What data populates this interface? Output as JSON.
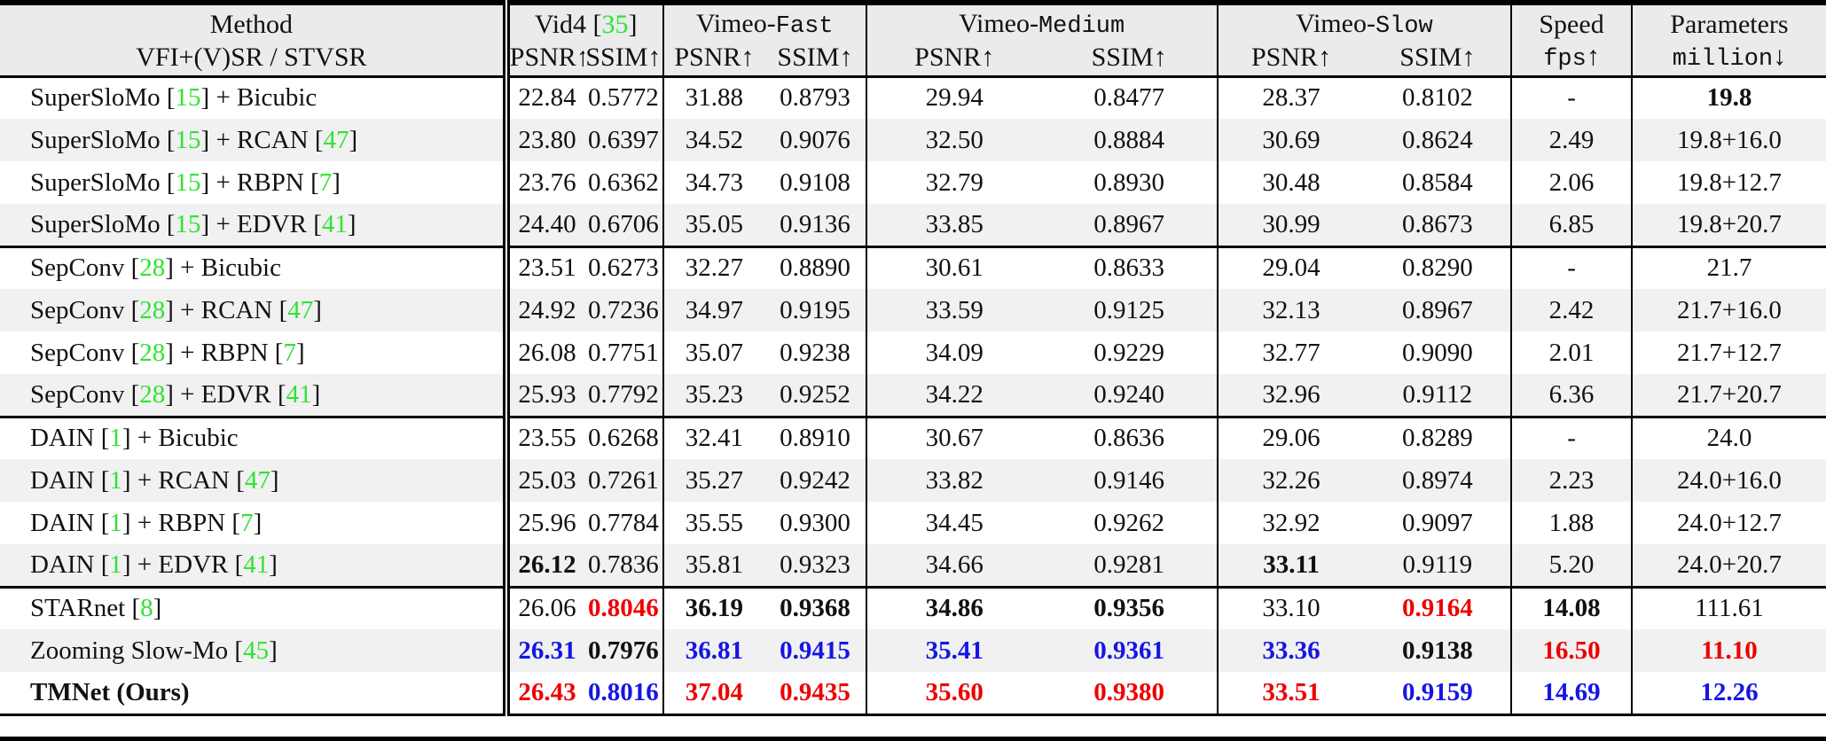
{
  "colors": {
    "red": "#ee0000",
    "blue": "#1515e6",
    "green": "#2ee431",
    "header_bg": "#ebebeb",
    "zebra_bg": "#f1f1f1"
  },
  "header": {
    "method": {
      "line1": "Method",
      "line2": "VFI+(V)SR / STVSR"
    },
    "groups": [
      {
        "span": 2,
        "segs": [
          [
            "Vid4 [",
            ""
          ],
          [
            "35",
            "g"
          ],
          [
            "]",
            ""
          ]
        ]
      },
      {
        "span": 2,
        "segs": [
          [
            "Vimeo-",
            ""
          ],
          [
            "Fast",
            "m"
          ]
        ]
      },
      {
        "span": 2,
        "segs": [
          [
            "Vimeo-",
            ""
          ],
          [
            "Medium",
            "m"
          ]
        ]
      },
      {
        "span": 2,
        "segs": [
          [
            "Vimeo-",
            ""
          ],
          [
            "Slow",
            "m"
          ]
        ]
      },
      {
        "span": 1,
        "segs": [
          [
            "Speed",
            ""
          ]
        ]
      },
      {
        "span": 1,
        "segs": [
          [
            "Parameters",
            ""
          ]
        ]
      }
    ],
    "sub": [
      {
        "segs": [
          [
            "PSNR↑",
            ""
          ]
        ]
      },
      {
        "segs": [
          [
            "SSIM↑",
            ""
          ]
        ]
      },
      {
        "segs": [
          [
            "PSNR↑",
            ""
          ]
        ]
      },
      {
        "segs": [
          [
            "SSIM↑",
            ""
          ]
        ]
      },
      {
        "segs": [
          [
            "PSNR↑",
            ""
          ]
        ]
      },
      {
        "segs": [
          [
            "SSIM↑",
            ""
          ]
        ]
      },
      {
        "segs": [
          [
            "PSNR↑",
            ""
          ]
        ]
      },
      {
        "segs": [
          [
            "SSIM↑",
            ""
          ]
        ]
      },
      {
        "segs": [
          [
            "fps",
            "m"
          ],
          [
            "↑",
            ""
          ]
        ]
      },
      {
        "segs": [
          [
            "million",
            "m"
          ],
          [
            "↓",
            ""
          ]
        ]
      }
    ]
  },
  "chart_data": {
    "type": "table",
    "title": "",
    "columns": [
      "Vid4 PSNR",
      "Vid4 SSIM",
      "Vimeo-Fast PSNR",
      "Vimeo-Fast SSIM",
      "Vimeo-Medium PSNR",
      "Vimeo-Medium SSIM",
      "Vimeo-Slow PSNR",
      "Vimeo-Slow SSIM",
      "Speed fps",
      "Parameters million"
    ]
  },
  "rows": [
    {
      "method": [
        [
          "SuperSloMo [",
          ""
        ],
        [
          "15",
          "g"
        ],
        [
          "] + Bicubic",
          ""
        ]
      ],
      "cells": [
        [
          "22.84",
          ""
        ],
        [
          "0.5772",
          ""
        ],
        [
          "31.88",
          ""
        ],
        [
          "0.8793",
          ""
        ],
        [
          "29.94",
          ""
        ],
        [
          "0.8477",
          ""
        ],
        [
          "28.37",
          ""
        ],
        [
          "0.8102",
          ""
        ],
        [
          "-",
          ""
        ],
        [
          "19.8",
          "b"
        ]
      ],
      "group_end": false
    },
    {
      "method": [
        [
          "SuperSloMo [",
          ""
        ],
        [
          "15",
          "g"
        ],
        [
          "] + RCAN [",
          ""
        ],
        [
          "47",
          "g"
        ],
        [
          "]",
          ""
        ]
      ],
      "cells": [
        [
          "23.80",
          ""
        ],
        [
          "0.6397",
          ""
        ],
        [
          "34.52",
          ""
        ],
        [
          "0.9076",
          ""
        ],
        [
          "32.50",
          ""
        ],
        [
          "0.8884",
          ""
        ],
        [
          "30.69",
          ""
        ],
        [
          "0.8624",
          ""
        ],
        [
          "2.49",
          ""
        ],
        [
          "19.8+16.0",
          ""
        ]
      ],
      "group_end": false
    },
    {
      "method": [
        [
          "SuperSloMo [",
          ""
        ],
        [
          "15",
          "g"
        ],
        [
          "] + RBPN [",
          ""
        ],
        [
          "7",
          "g"
        ],
        [
          "]",
          ""
        ]
      ],
      "cells": [
        [
          "23.76",
          ""
        ],
        [
          "0.6362",
          ""
        ],
        [
          "34.73",
          ""
        ],
        [
          "0.9108",
          ""
        ],
        [
          "32.79",
          ""
        ],
        [
          "0.8930",
          ""
        ],
        [
          "30.48",
          ""
        ],
        [
          "0.8584",
          ""
        ],
        [
          "2.06",
          ""
        ],
        [
          "19.8+12.7",
          ""
        ]
      ],
      "group_end": false
    },
    {
      "method": [
        [
          "SuperSloMo [",
          ""
        ],
        [
          "15",
          "g"
        ],
        [
          "] + EDVR [",
          ""
        ],
        [
          "41",
          "g"
        ],
        [
          "]",
          ""
        ]
      ],
      "cells": [
        [
          "24.40",
          ""
        ],
        [
          "0.6706",
          ""
        ],
        [
          "35.05",
          ""
        ],
        [
          "0.9136",
          ""
        ],
        [
          "33.85",
          ""
        ],
        [
          "0.8967",
          ""
        ],
        [
          "30.99",
          ""
        ],
        [
          "0.8673",
          ""
        ],
        [
          "6.85",
          ""
        ],
        [
          "19.8+20.7",
          ""
        ]
      ],
      "group_end": true
    },
    {
      "method": [
        [
          "SepConv [",
          ""
        ],
        [
          "28",
          "g"
        ],
        [
          "] + Bicubic",
          ""
        ]
      ],
      "cells": [
        [
          "23.51",
          ""
        ],
        [
          "0.6273",
          ""
        ],
        [
          "32.27",
          ""
        ],
        [
          "0.8890",
          ""
        ],
        [
          "30.61",
          ""
        ],
        [
          "0.8633",
          ""
        ],
        [
          "29.04",
          ""
        ],
        [
          "0.8290",
          ""
        ],
        [
          "-",
          ""
        ],
        [
          "21.7",
          ""
        ]
      ],
      "group_end": false
    },
    {
      "method": [
        [
          "SepConv [",
          ""
        ],
        [
          "28",
          "g"
        ],
        [
          "] + RCAN [",
          ""
        ],
        [
          "47",
          "g"
        ],
        [
          "]",
          ""
        ]
      ],
      "cells": [
        [
          "24.92",
          ""
        ],
        [
          "0.7236",
          ""
        ],
        [
          "34.97",
          ""
        ],
        [
          "0.9195",
          ""
        ],
        [
          "33.59",
          ""
        ],
        [
          "0.9125",
          ""
        ],
        [
          "32.13",
          ""
        ],
        [
          "0.8967",
          ""
        ],
        [
          "2.42",
          ""
        ],
        [
          "21.7+16.0",
          ""
        ]
      ],
      "group_end": false
    },
    {
      "method": [
        [
          "SepConv [",
          ""
        ],
        [
          "28",
          "g"
        ],
        [
          "] + RBPN [",
          ""
        ],
        [
          "7",
          "g"
        ],
        [
          "]",
          ""
        ]
      ],
      "cells": [
        [
          "26.08",
          ""
        ],
        [
          "0.7751",
          ""
        ],
        [
          "35.07",
          ""
        ],
        [
          "0.9238",
          ""
        ],
        [
          "34.09",
          ""
        ],
        [
          "0.9229",
          ""
        ],
        [
          "32.77",
          ""
        ],
        [
          "0.9090",
          ""
        ],
        [
          "2.01",
          ""
        ],
        [
          "21.7+12.7",
          ""
        ]
      ],
      "group_end": false
    },
    {
      "method": [
        [
          "SepConv [",
          ""
        ],
        [
          "28",
          "g"
        ],
        [
          "] + EDVR [",
          ""
        ],
        [
          "41",
          "g"
        ],
        [
          "]",
          ""
        ]
      ],
      "cells": [
        [
          "25.93",
          ""
        ],
        [
          "0.7792",
          ""
        ],
        [
          "35.23",
          ""
        ],
        [
          "0.9252",
          ""
        ],
        [
          "34.22",
          ""
        ],
        [
          "0.9240",
          ""
        ],
        [
          "32.96",
          ""
        ],
        [
          "0.9112",
          ""
        ],
        [
          "6.36",
          ""
        ],
        [
          "21.7+20.7",
          ""
        ]
      ],
      "group_end": true
    },
    {
      "method": [
        [
          "DAIN [",
          ""
        ],
        [
          "1",
          "g"
        ],
        [
          "] + Bicubic",
          ""
        ]
      ],
      "cells": [
        [
          "23.55",
          ""
        ],
        [
          "0.6268",
          ""
        ],
        [
          "32.41",
          ""
        ],
        [
          "0.8910",
          ""
        ],
        [
          "30.67",
          ""
        ],
        [
          "0.8636",
          ""
        ],
        [
          "29.06",
          ""
        ],
        [
          "0.8289",
          ""
        ],
        [
          "-",
          ""
        ],
        [
          "24.0",
          ""
        ]
      ],
      "group_end": false
    },
    {
      "method": [
        [
          "DAIN [",
          ""
        ],
        [
          "1",
          "g"
        ],
        [
          "] + RCAN [",
          ""
        ],
        [
          "47",
          "g"
        ],
        [
          "]",
          ""
        ]
      ],
      "cells": [
        [
          "25.03",
          ""
        ],
        [
          "0.7261",
          ""
        ],
        [
          "35.27",
          ""
        ],
        [
          "0.9242",
          ""
        ],
        [
          "33.82",
          ""
        ],
        [
          "0.9146",
          ""
        ],
        [
          "32.26",
          ""
        ],
        [
          "0.8974",
          ""
        ],
        [
          "2.23",
          ""
        ],
        [
          "24.0+16.0",
          ""
        ]
      ],
      "group_end": false
    },
    {
      "method": [
        [
          "DAIN [",
          ""
        ],
        [
          "1",
          "g"
        ],
        [
          "] + RBPN [",
          ""
        ],
        [
          "7",
          "g"
        ],
        [
          "]",
          ""
        ]
      ],
      "cells": [
        [
          "25.96",
          ""
        ],
        [
          "0.7784",
          ""
        ],
        [
          "35.55",
          ""
        ],
        [
          "0.9300",
          ""
        ],
        [
          "34.45",
          ""
        ],
        [
          "0.9262",
          ""
        ],
        [
          "32.92",
          ""
        ],
        [
          "0.9097",
          ""
        ],
        [
          "1.88",
          ""
        ],
        [
          "24.0+12.7",
          ""
        ]
      ],
      "group_end": false
    },
    {
      "method": [
        [
          "DAIN [",
          ""
        ],
        [
          "1",
          "g"
        ],
        [
          "] + EDVR [",
          ""
        ],
        [
          "41",
          "g"
        ],
        [
          "]",
          ""
        ]
      ],
      "cells": [
        [
          "26.12",
          "b"
        ],
        [
          "0.7836",
          ""
        ],
        [
          "35.81",
          ""
        ],
        [
          "0.9323",
          ""
        ],
        [
          "34.66",
          ""
        ],
        [
          "0.9281",
          ""
        ],
        [
          "33.11",
          "b"
        ],
        [
          "0.9119",
          ""
        ],
        [
          "5.20",
          ""
        ],
        [
          "24.0+20.7",
          ""
        ]
      ],
      "group_end": true
    },
    {
      "method": [
        [
          "STARnet [",
          ""
        ],
        [
          "8",
          "g"
        ],
        [
          "]",
          ""
        ]
      ],
      "cells": [
        [
          "26.06",
          ""
        ],
        [
          "0.8046",
          "r"
        ],
        [
          "36.19",
          "b"
        ],
        [
          "0.9368",
          "b"
        ],
        [
          "34.86",
          "b"
        ],
        [
          "0.9356",
          "b"
        ],
        [
          "33.10",
          ""
        ],
        [
          "0.9164",
          "r"
        ],
        [
          "14.08",
          "b"
        ],
        [
          "111.61",
          ""
        ]
      ],
      "group_end": false
    },
    {
      "method": [
        [
          "Zooming Slow-Mo [",
          ""
        ],
        [
          "45",
          "g"
        ],
        [
          "]",
          ""
        ]
      ],
      "cells": [
        [
          "26.31",
          "u"
        ],
        [
          "0.7976",
          "b"
        ],
        [
          "36.81",
          "u"
        ],
        [
          "0.9415",
          "u"
        ],
        [
          "35.41",
          "u"
        ],
        [
          "0.9361",
          "u"
        ],
        [
          "33.36",
          "u"
        ],
        [
          "0.9138",
          "b"
        ],
        [
          "16.50",
          "r"
        ],
        [
          "11.10",
          "r"
        ]
      ],
      "group_end": false
    },
    {
      "method": [
        [
          "TMNet (Ours)",
          "b"
        ]
      ],
      "cells": [
        [
          "26.43",
          "r"
        ],
        [
          "0.8016",
          "u"
        ],
        [
          "37.04",
          "r"
        ],
        [
          "0.9435",
          "r"
        ],
        [
          "35.60",
          "r"
        ],
        [
          "0.9380",
          "r"
        ],
        [
          "33.51",
          "r"
        ],
        [
          "0.9159",
          "u"
        ],
        [
          "14.69",
          "u"
        ],
        [
          "12.26",
          "u"
        ]
      ],
      "group_end": false
    }
  ]
}
